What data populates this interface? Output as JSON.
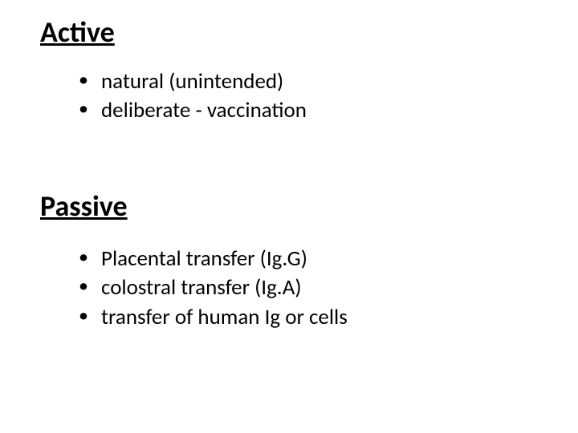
{
  "sections": [
    {
      "heading": "Active",
      "items": [
        "natural (unintended)",
        "deliberate - vaccination"
      ]
    },
    {
      "heading": "Passive",
      "items": [
        "Placental transfer (Ig.G)",
        "colostral transfer (Ig.A)",
        "transfer of human Ig or cells"
      ]
    }
  ],
  "colors": {
    "background": "#ffffff",
    "text": "#000000"
  },
  "typography": {
    "heading_fontsize": 36,
    "heading_weight": 700,
    "body_fontsize": 27,
    "body_weight": 400,
    "font_family": "Calibri"
  }
}
